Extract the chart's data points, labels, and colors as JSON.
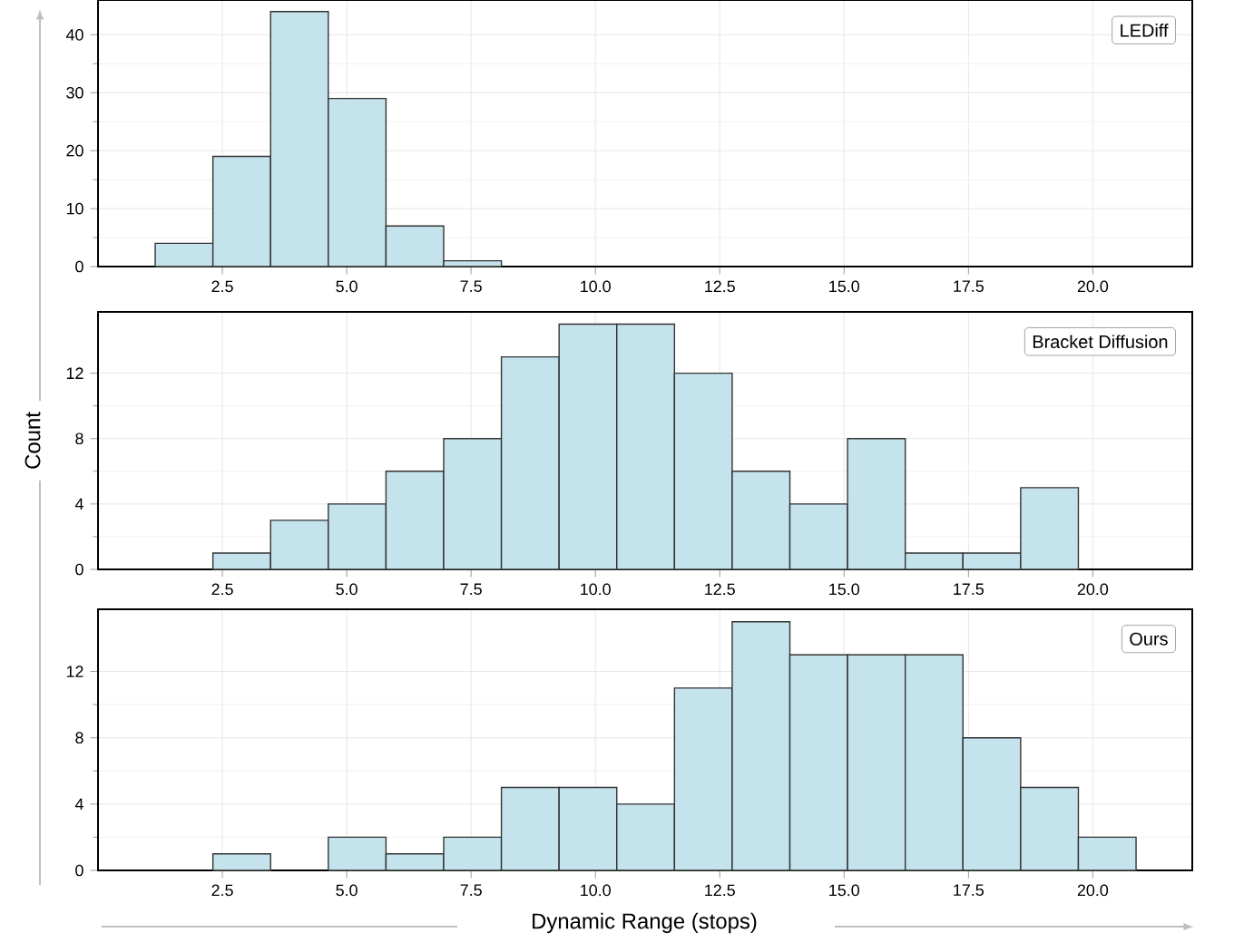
{
  "chart_data": [
    {
      "type": "histogram",
      "title": "LEDiff",
      "bins": [
        1.15,
        2.31,
        3.47,
        4.63,
        5.79,
        6.95,
        8.11
      ],
      "values": [
        4,
        19,
        44,
        29,
        7,
        1
      ],
      "color": "#c5e3ec",
      "xlim": [
        0,
        22
      ],
      "ylim": [
        0,
        46
      ],
      "xticks": [
        {
          "value": 2.5,
          "label": "2.5"
        },
        {
          "value": 5,
          "label": "5.0"
        },
        {
          "value": 7.5,
          "label": "7.5"
        },
        {
          "value": 10,
          "label": "10.0"
        },
        {
          "value": 12.5,
          "label": "12.5"
        },
        {
          "value": 15,
          "label": "15.0"
        },
        {
          "value": 17.5,
          "label": "17.5"
        },
        {
          "value": 20,
          "label": "20.0"
        }
      ],
      "yticks": [
        0,
        10,
        20,
        30,
        40
      ],
      "grid": true
    },
    {
      "type": "histogram",
      "title": "Bracket Diffusion",
      "ylabel": "Count",
      "bins": [
        2.31,
        3.47,
        4.63,
        5.79,
        6.95,
        8.11,
        9.27,
        10.43,
        11.59,
        12.75,
        13.91,
        15.07,
        16.23,
        17.39,
        18.55,
        19.71
      ],
      "values": [
        1,
        3,
        4,
        6,
        8,
        13,
        15,
        15,
        12,
        6,
        4,
        8,
        1,
        1,
        5
      ],
      "color": "#c5e3ec",
      "xlim": [
        0,
        22
      ],
      "ylim": [
        0,
        15.75
      ],
      "xticks": [
        {
          "value": 2.5,
          "label": "2.5"
        },
        {
          "value": 5,
          "label": "5.0"
        },
        {
          "value": 7.5,
          "label": "7.5"
        },
        {
          "value": 10,
          "label": "10.0"
        },
        {
          "value": 12.5,
          "label": "12.5"
        },
        {
          "value": 15,
          "label": "15.0"
        },
        {
          "value": 17.5,
          "label": "17.5"
        },
        {
          "value": 20,
          "label": "20.0"
        }
      ],
      "yticks": [
        0,
        4,
        8,
        12
      ],
      "grid": true
    },
    {
      "type": "histogram",
      "title": "Ours",
      "xlabel": "Dynamic Range (stops)",
      "bins": [
        2.31,
        3.47,
        4.63,
        5.79,
        6.95,
        8.11,
        9.27,
        10.43,
        11.59,
        12.75,
        13.91,
        15.07,
        16.23,
        17.39,
        18.55,
        19.71,
        20.87
      ],
      "values": [
        1,
        0,
        2,
        1,
        2,
        5,
        5,
        4,
        11,
        15,
        13,
        13,
        13,
        8,
        5,
        2
      ],
      "color": "#c5e3ec",
      "xlim": [
        0,
        22
      ],
      "ylim": [
        0,
        15.75
      ],
      "xticks": [
        {
          "value": 2.5,
          "label": "2.5"
        },
        {
          "value": 5,
          "label": "5.0"
        },
        {
          "value": 7.5,
          "label": "7.5"
        },
        {
          "value": 10,
          "label": "10.0"
        },
        {
          "value": 12.5,
          "label": "12.5"
        },
        {
          "value": 15,
          "label": "15.0"
        },
        {
          "value": 17.5,
          "label": "17.5"
        },
        {
          "value": 20,
          "label": "20.0"
        }
      ],
      "yticks": [
        0,
        4,
        8,
        12
      ],
      "grid": true
    }
  ]
}
